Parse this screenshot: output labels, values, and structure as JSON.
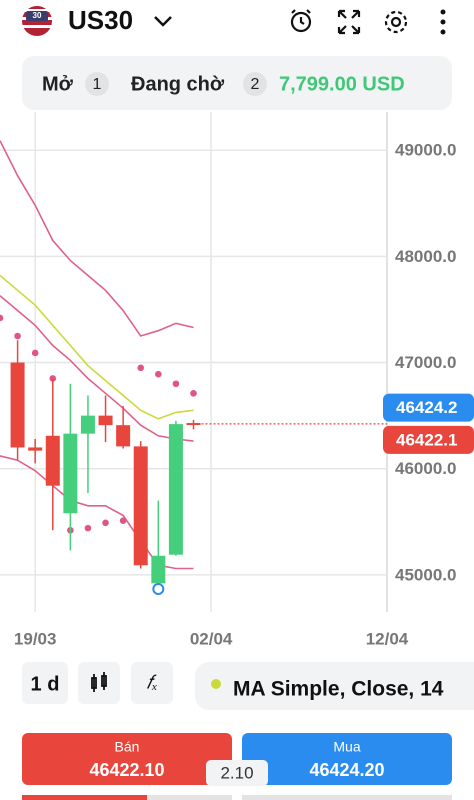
{
  "header": {
    "symbol": "US30",
    "flag_text": "30"
  },
  "summary": {
    "open_label": "Mở",
    "open_count": "1",
    "pending_label": "Đang chờ",
    "pending_count": "2",
    "balance": "7,799.00 USD"
  },
  "chart_data": {
    "type": "candlestick",
    "categories": [
      null,
      null,
      "19/03",
      null,
      null,
      null,
      null,
      null,
      null,
      null,
      null,
      null,
      "02/04",
      null,
      null,
      null,
      null,
      null,
      null,
      null,
      null,
      null,
      "12/04"
    ],
    "candles": {
      "up_color": "#45cf7d",
      "down_color": "#e8463d",
      "open": [
        null,
        47000,
        46200,
        46310,
        45580,
        46330,
        46500,
        46410,
        46210,
        44920,
        45190,
        46430,
        null,
        null,
        null,
        null,
        null,
        null,
        null,
        null,
        null,
        null,
        null
      ],
      "high": [
        null,
        47210,
        46280,
        46850,
        46800,
        46690,
        46690,
        46590,
        46260,
        45700,
        46450,
        46460,
        null,
        null,
        null,
        null,
        null,
        null,
        null,
        null,
        null,
        null,
        null
      ],
      "low": [
        null,
        46080,
        46050,
        45420,
        45230,
        45770,
        46250,
        46190,
        45060,
        44900,
        45180,
        46370,
        null,
        null,
        null,
        null,
        null,
        null,
        null,
        null,
        null,
        null,
        null
      ],
      "close": [
        null,
        46200,
        46170,
        45840,
        46330,
        46500,
        46410,
        46210,
        45090,
        45180,
        46420,
        46420,
        null,
        null,
        null,
        null,
        null,
        null,
        null,
        null,
        null,
        null,
        null
      ]
    },
    "series": [
      {
        "kind": "line",
        "color": "#e0608c",
        "values": [
          49090,
          48760,
          48480,
          48150,
          47960,
          47820,
          47680,
          47490,
          47250,
          47300,
          47370,
          47330,
          null,
          null,
          null,
          null,
          null,
          null,
          null,
          null,
          null,
          null,
          null
        ]
      },
      {
        "kind": "line",
        "color": "#c9da3a",
        "values": [
          47820,
          47680,
          47540,
          47350,
          47160,
          46970,
          46830,
          46690,
          46550,
          46470,
          46530,
          46550,
          null,
          null,
          null,
          null,
          null,
          null,
          null,
          null,
          null,
          null,
          null
        ]
      },
      {
        "kind": "line",
        "color": "#e0608c",
        "values": [
          47630,
          47490,
          47350,
          47160,
          47020,
          46850,
          46710,
          46570,
          46410,
          46310,
          46280,
          46260,
          null,
          null,
          null,
          null,
          null,
          null,
          null,
          null,
          null,
          null,
          null
        ]
      },
      {
        "kind": "line",
        "color": "#e0608c",
        "values": [
          46120,
          46080,
          45980,
          45840,
          45700,
          45650,
          45650,
          45560,
          45320,
          45090,
          45060,
          45060,
          null,
          null,
          null,
          null,
          null,
          null,
          null,
          null,
          null,
          null,
          null
        ]
      },
      {
        "kind": "dots",
        "color": "#e0548a",
        "values": [
          47420,
          47250,
          47090,
          46850,
          45420,
          45440,
          45490,
          45510,
          46950,
          46890,
          46800,
          46710,
          null,
          null,
          null,
          null,
          null,
          null,
          null,
          null,
          null,
          null,
          null
        ]
      }
    ],
    "ylim": [
      44650,
      49360
    ],
    "yticks": [
      {
        "value": 45000,
        "label": "45000.0"
      },
      {
        "value": 46000,
        "label": "46000.0"
      },
      {
        "value": 47000,
        "label": "47000.0"
      },
      {
        "value": 48000,
        "label": "48000.0"
      },
      {
        "value": 49000,
        "label": "49000.0"
      }
    ],
    "grid": true,
    "ask": 46424.2,
    "ask_color": "#2b8cf0",
    "bid": 46422.1,
    "bid_color": "#e8463d"
  },
  "toolbar": {
    "timeframe": "1 d",
    "indicator": "MA Simple, Close, 14"
  },
  "trade": {
    "sell_label": "Bán",
    "sell_price": "46422.10",
    "buy_label": "Mua",
    "buy_price": "46424.20",
    "spread": "2.10"
  }
}
